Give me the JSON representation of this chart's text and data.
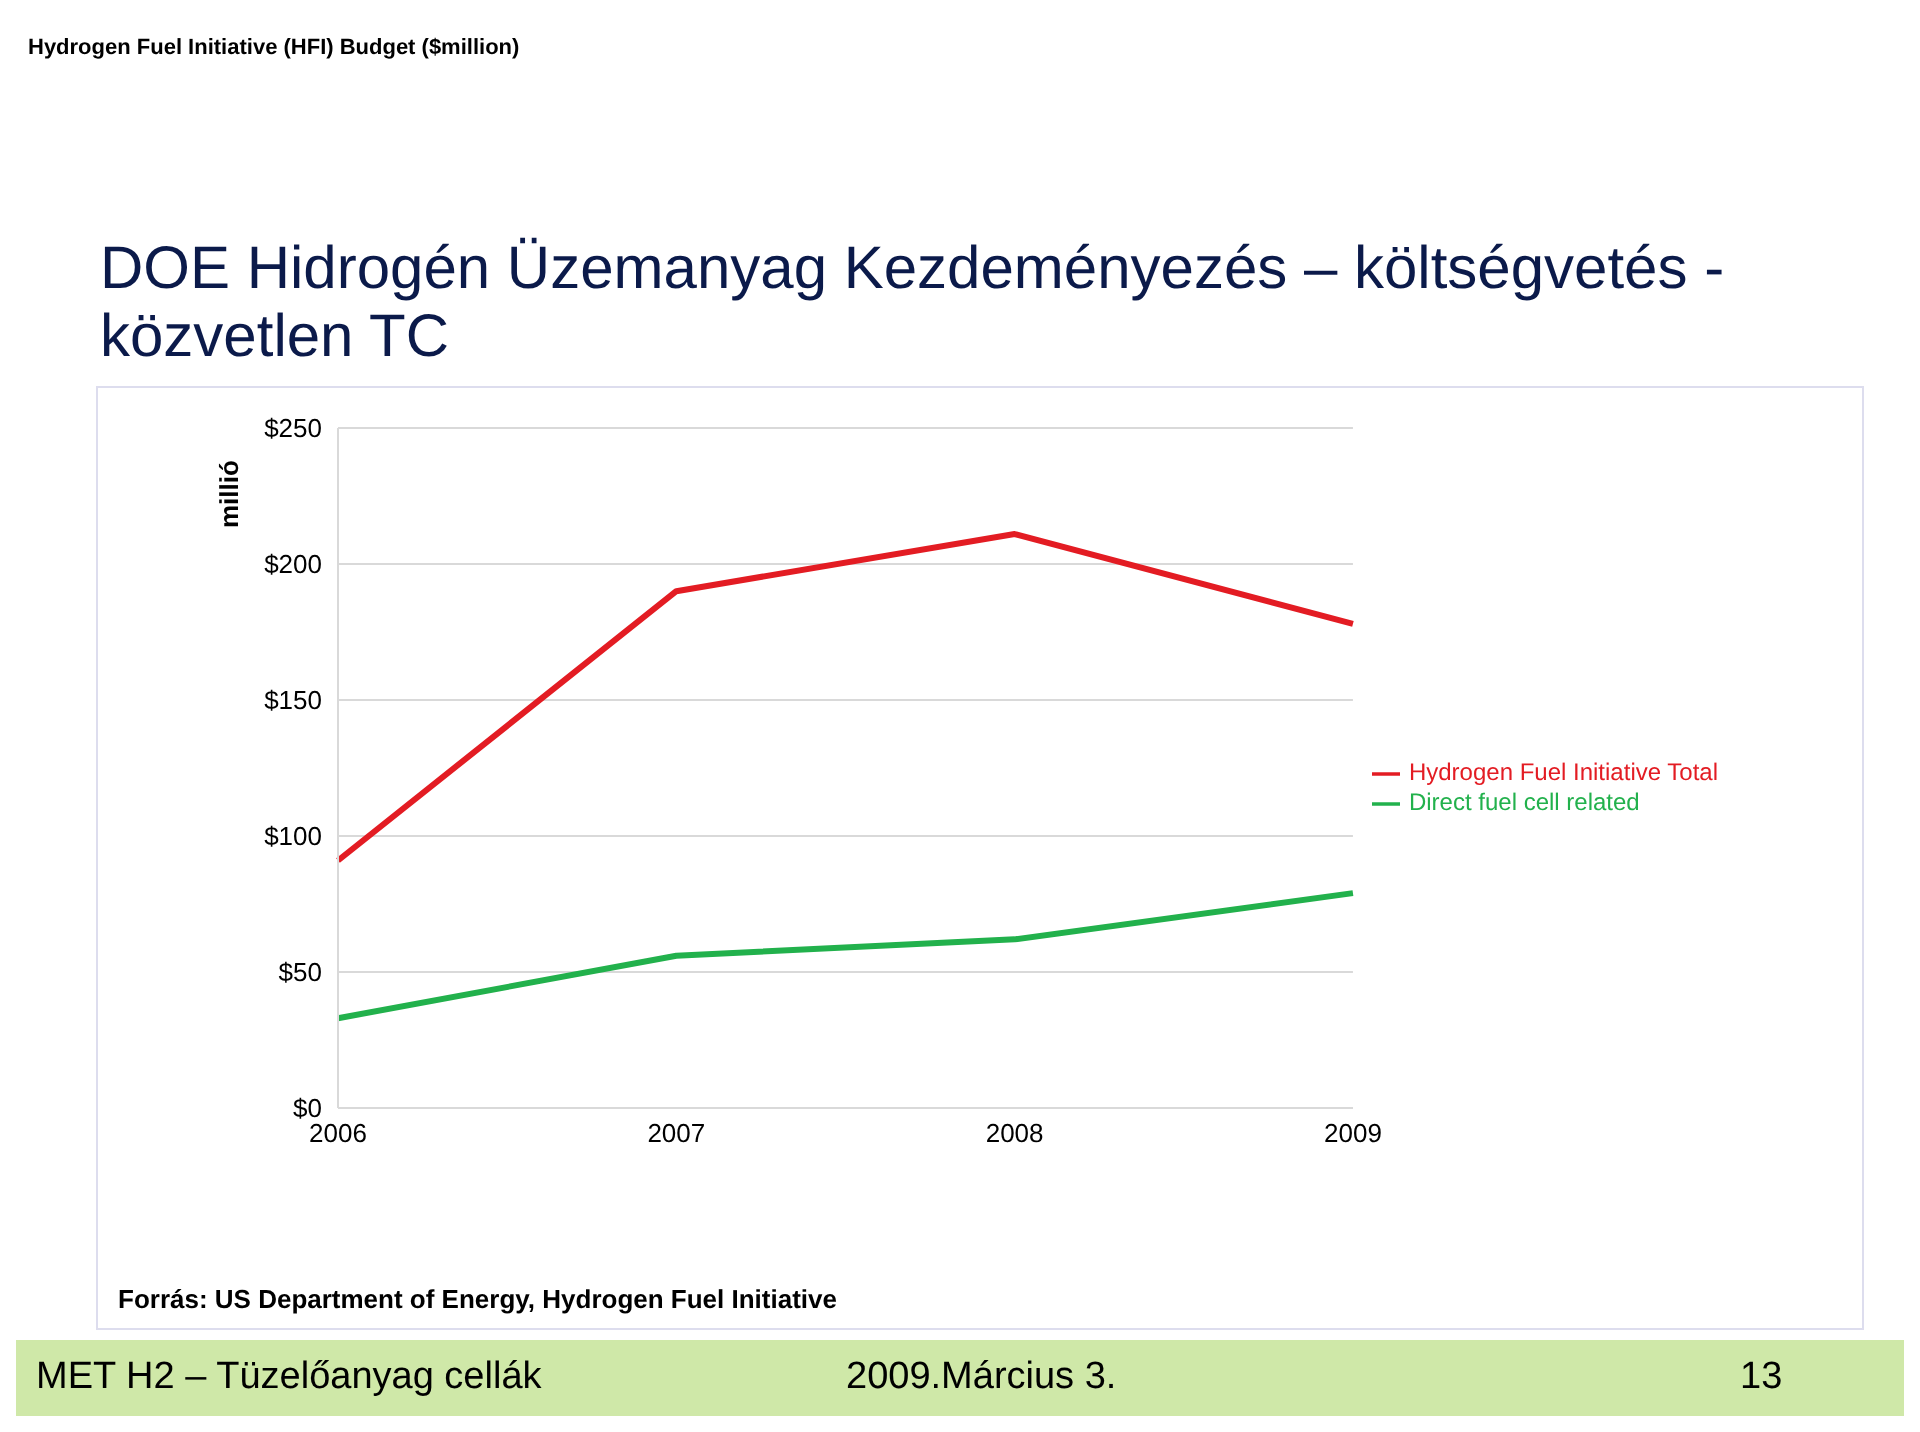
{
  "chart_data": {
    "type": "line",
    "title": "DOE Hidrogén Üzemanyag Kezdeményezés – költségvetés - közvetlen TC",
    "ylabel": "millió",
    "categories": [
      "2006",
      "2007",
      "2008",
      "2009"
    ],
    "series": [
      {
        "name": "Hydrogen Fuel Initiative Total",
        "color": "#e31c23",
        "values": [
          91,
          190,
          211,
          178
        ]
      },
      {
        "name": "Direct fuel cell related",
        "color": "#22b14c",
        "values": [
          33,
          56,
          62,
          79
        ]
      }
    ],
    "ylim": [
      0,
      250
    ],
    "yticks": [
      {
        "value": 0,
        "label": "$0"
      },
      {
        "value": 50,
        "label": "$50"
      },
      {
        "value": 100,
        "label": "$100"
      },
      {
        "value": 150,
        "label": "$150"
      },
      {
        "value": 200,
        "label": "$200"
      },
      {
        "value": 250,
        "label": "$250"
      }
    ],
    "grid": "y",
    "legend": "right",
    "marker": "none",
    "line_style": "solid",
    "annotations": [
      "Hydrogen Fuel Initiative (HFI) Budget ($million)",
      "Forrás: US Department of Energy, Hydrogen Fuel Initiative",
      "MET H2 – Tüzelőanyag cellák",
      "2009.Március 3.",
      "13"
    ]
  }
}
